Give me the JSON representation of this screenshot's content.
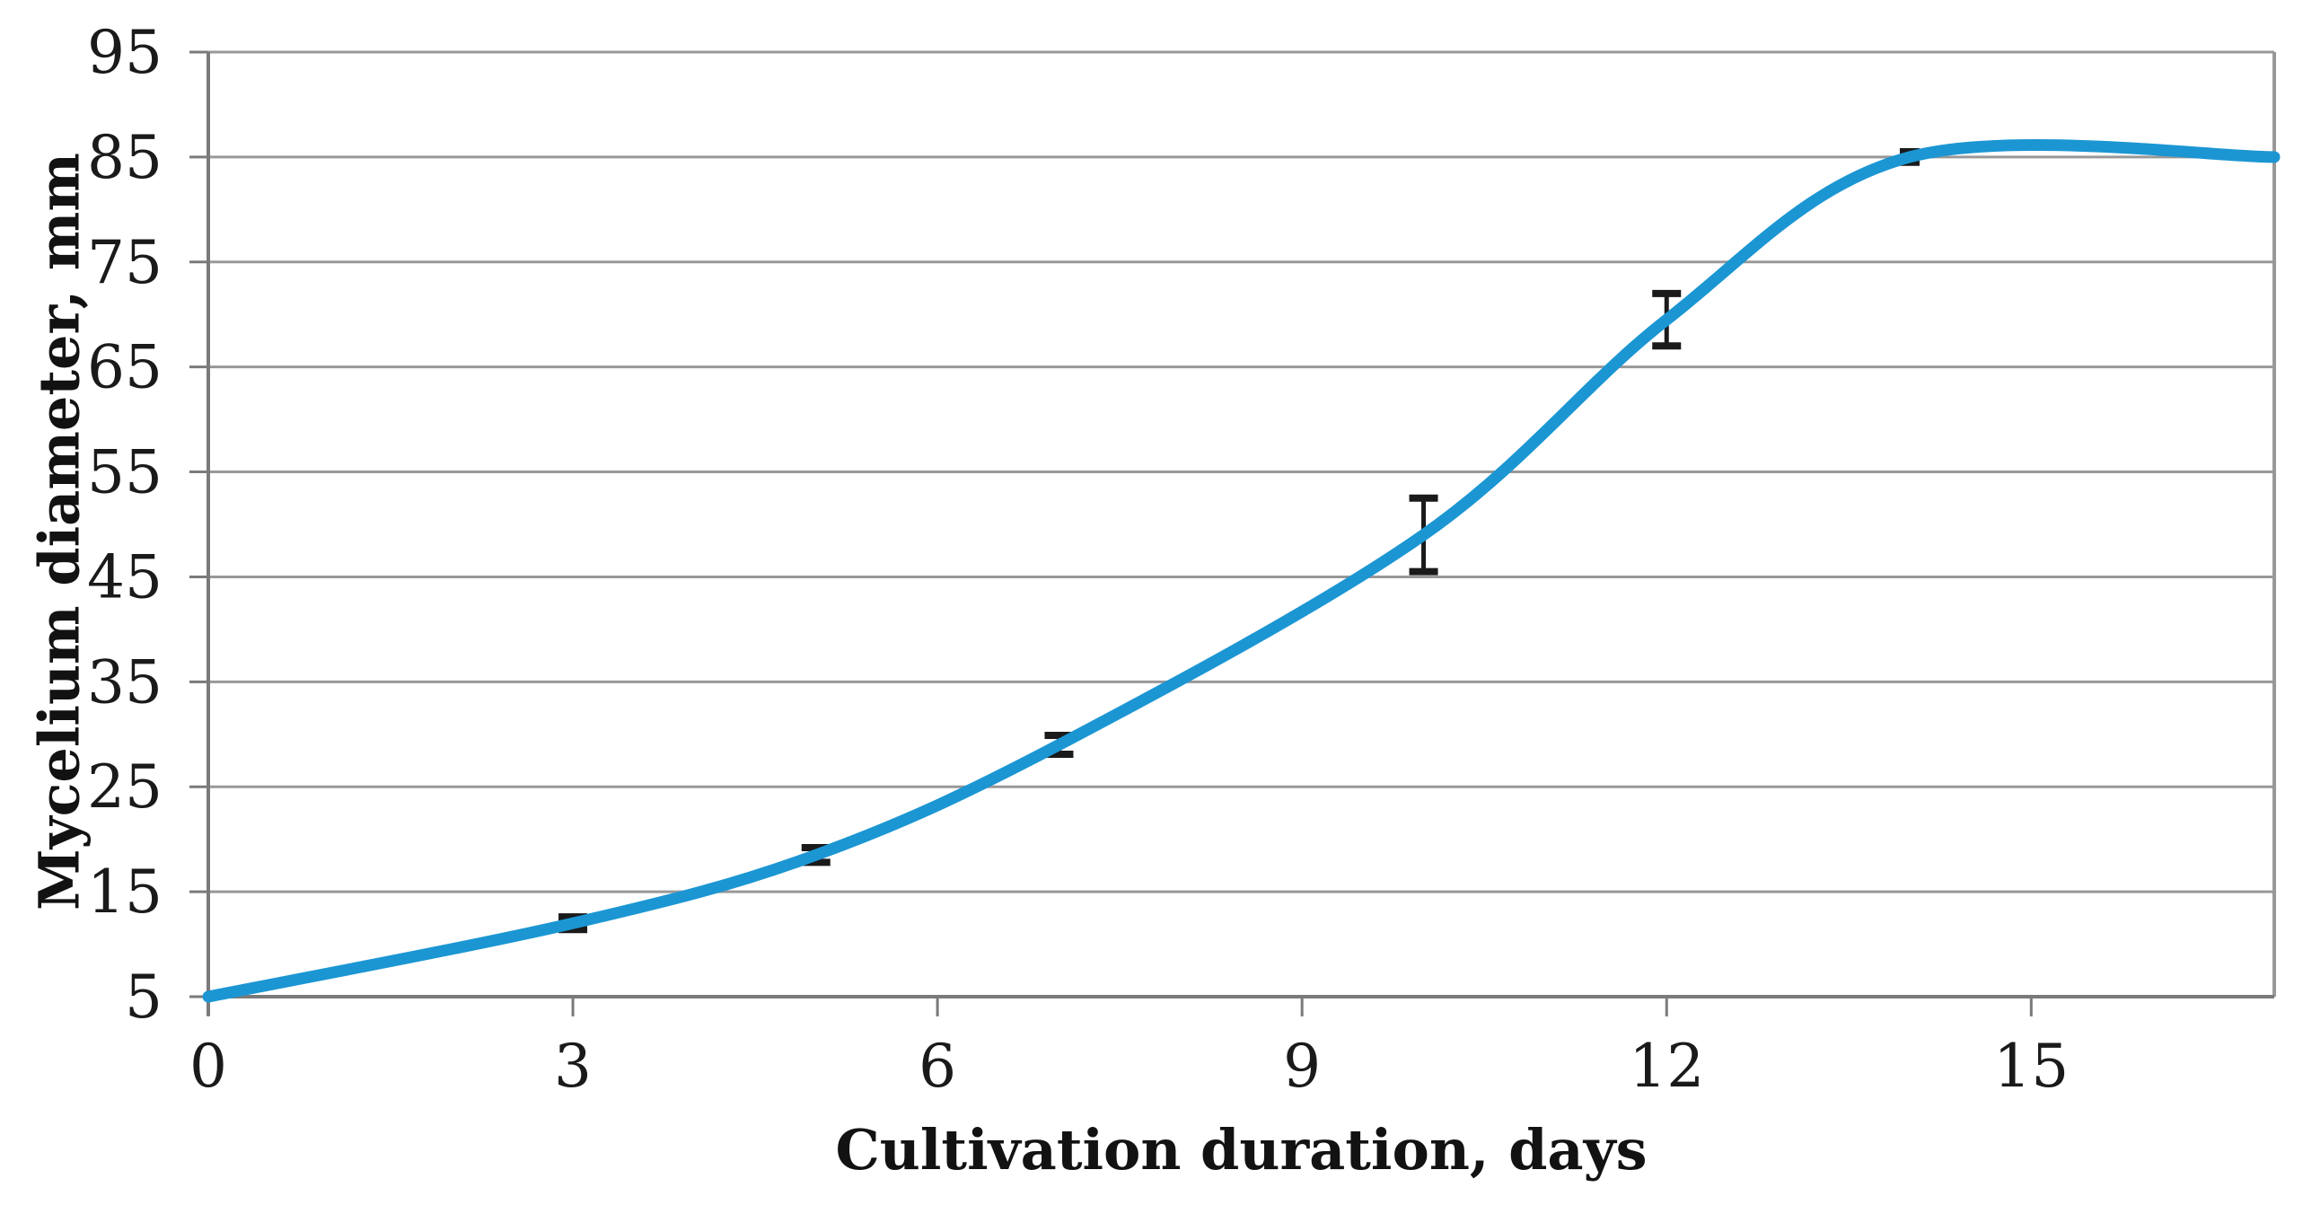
{
  "chart_data": {
    "type": "line",
    "title": "",
    "xlabel": "Cultivation duration, days",
    "ylabel": "Mycelium diameter, mm",
    "xlim": [
      0,
      17
    ],
    "ylim": [
      5,
      95
    ],
    "xticks": [
      0,
      3,
      6,
      9,
      12,
      15
    ],
    "yticks": [
      5,
      15,
      25,
      35,
      45,
      55,
      65,
      75,
      85,
      95
    ],
    "grid": "horizontal-only",
    "legend": "none",
    "smooth_line": true,
    "line_color": "#1b96d3",
    "gridline_color": "#989898",
    "axis_color": "#7a7a7a",
    "error_bar_color": "#1a1a1a",
    "series": [
      {
        "name": "Mycelium diameter",
        "points": [
          {
            "x": 0,
            "y": 5,
            "err": 0
          },
          {
            "x": 3,
            "y": 12,
            "err": 0.6
          },
          {
            "x": 5,
            "y": 18.5,
            "err": 0.7
          },
          {
            "x": 7,
            "y": 29,
            "err": 0.9
          },
          {
            "x": 10,
            "y": 49,
            "err": 3.5
          },
          {
            "x": 12,
            "y": 69.5,
            "err": 2.5
          },
          {
            "x": 14,
            "y": 85,
            "err": 0.5
          },
          {
            "x": 17,
            "y": 85,
            "err": 0
          }
        ]
      }
    ]
  }
}
